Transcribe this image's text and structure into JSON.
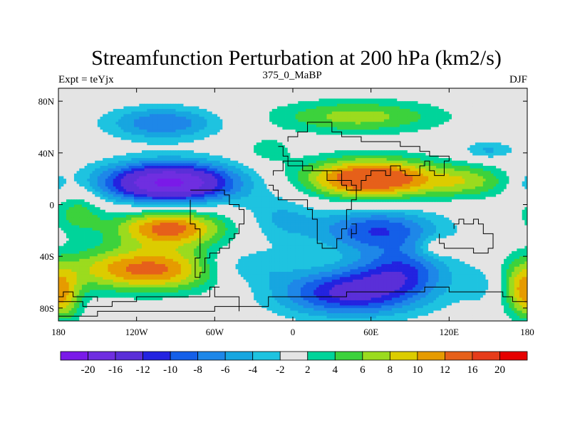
{
  "chart_data": {
    "type": "heatmap",
    "title": "Streamfunction Perturbation at 200 hPa (km2/s)",
    "subtitle_left": "Expt = teYjx",
    "subtitle_center": "375_0_MaBP",
    "subtitle_right": "DJF",
    "x_range": [
      -180,
      180
    ],
    "y_range": [
      -90,
      90
    ],
    "x_ticks": [
      {
        "value": -180,
        "label": "180"
      },
      {
        "value": -120,
        "label": "120W"
      },
      {
        "value": -60,
        "label": "60W"
      },
      {
        "value": 0,
        "label": "0"
      },
      {
        "value": 60,
        "label": "60E"
      },
      {
        "value": 120,
        "label": "120E"
      },
      {
        "value": 180,
        "label": "180"
      }
    ],
    "y_ticks": [
      {
        "value": 80,
        "label": "80N"
      },
      {
        "value": 40,
        "label": "40N"
      },
      {
        "value": 0,
        "label": "0"
      },
      {
        "value": -40,
        "label": "40S"
      },
      {
        "value": -80,
        "label": "80S"
      }
    ],
    "levels": [
      -20,
      -16,
      -12,
      -10,
      -8,
      -6,
      -4,
      -2,
      2,
      4,
      6,
      8,
      10,
      12,
      16,
      20
    ],
    "level_labels": [
      "-20",
      "-16",
      "-12",
      "-10",
      "-8",
      "-6",
      "-4",
      "-2",
      "2",
      "4",
      "6",
      "8",
      "10",
      "12",
      "16",
      "20"
    ],
    "colors": [
      "#7a1ae8",
      "#6f2ee0",
      "#5a2fd8",
      "#2323e0",
      "#145fe8",
      "#1e87e8",
      "#17a6e0",
      "#1ec3e0",
      "#e4e4e4",
      "#00d49a",
      "#3cd23c",
      "#9bdb1e",
      "#dccc00",
      "#e69b00",
      "#e6601a",
      "#e63c1a",
      "#e60000"
    ],
    "background_value_color": "#e4e4e4",
    "features": [
      {
        "lon": -100,
        "lat": 63,
        "amp": -8,
        "sx": 30,
        "sy": 9
      },
      {
        "lon": 50,
        "lat": 68,
        "amp": 7,
        "sx": 45,
        "sy": 9
      },
      {
        "lon": 150,
        "lat": 42,
        "amp": -4.5,
        "sx": 14,
        "sy": 5
      },
      {
        "lon": -95,
        "lat": 17,
        "amp": -21,
        "sx": 36,
        "sy": 11
      },
      {
        "lon": 60,
        "lat": 20,
        "amp": 16,
        "sx": 36,
        "sy": 11
      },
      {
        "lon": 135,
        "lat": 18,
        "amp": 6,
        "sx": 24,
        "sy": 9
      },
      {
        "lon": -20,
        "lat": 42,
        "amp": 3,
        "sx": 14,
        "sy": 8
      },
      {
        "lon": -95,
        "lat": -18,
        "amp": 13,
        "sx": 30,
        "sy": 10
      },
      {
        "lon": -110,
        "lat": -50,
        "amp": 13,
        "sx": 45,
        "sy": 12
      },
      {
        "lon": -165,
        "lat": -5,
        "amp": 5,
        "sx": 14,
        "sy": 12
      },
      {
        "lon": -10,
        "lat": -10,
        "amp": -4,
        "sx": 20,
        "sy": 14
      },
      {
        "lon": 65,
        "lat": -20,
        "amp": -10,
        "sx": 34,
        "sy": 12
      },
      {
        "lon": 45,
        "lat": -68,
        "amp": -13,
        "sx": 40,
        "sy": 13
      },
      {
        "lon": 85,
        "lat": -50,
        "amp": -8,
        "sx": 25,
        "sy": 12
      },
      {
        "lon": -40,
        "lat": -48,
        "amp": -6,
        "sx": 25,
        "sy": 10
      },
      {
        "lon": 110,
        "lat": -33,
        "amp": 3.8,
        "sx": 10,
        "sy": 6
      },
      {
        "lon": 150,
        "lat": -60,
        "amp": -3,
        "sx": 15,
        "sy": 13
      },
      {
        "lon": 175,
        "lat": -65,
        "amp": 8,
        "sx": 12,
        "sy": 14
      },
      {
        "lon": -175,
        "lat": -75,
        "amp": 5,
        "sx": 10,
        "sy": 12
      },
      {
        "lon": 178,
        "lat": 15,
        "amp": -3,
        "sx": 7,
        "sy": 8
      }
    ],
    "continents": [
      [
        [
          -10,
          45
        ],
        [
          -6,
          43
        ],
        [
          -6,
          38
        ],
        [
          -2,
          35
        ],
        [
          8,
          30
        ],
        [
          14,
          28
        ],
        [
          20,
          25
        ],
        [
          25,
          28
        ],
        [
          32,
          25
        ],
        [
          38,
          20
        ],
        [
          44,
          15
        ],
        [
          50,
          12
        ],
        [
          52,
          18
        ],
        [
          56,
          22
        ],
        [
          60,
          26
        ],
        [
          70,
          24
        ],
        [
          75,
          30
        ],
        [
          82,
          26
        ],
        [
          88,
          24
        ],
        [
          92,
          22
        ],
        [
          96,
          30
        ],
        [
          100,
          32
        ],
        [
          104,
          28
        ],
        [
          108,
          24
        ],
        [
          112,
          22
        ],
        [
          115,
          28
        ],
        [
          118,
          34
        ],
        [
          120,
          38
        ],
        [
          114,
          38
        ],
        [
          106,
          40
        ],
        [
          96,
          46
        ],
        [
          84,
          48
        ],
        [
          72,
          50
        ],
        [
          60,
          50
        ],
        [
          52,
          52
        ],
        [
          44,
          54
        ],
        [
          36,
          56
        ],
        [
          30,
          62
        ],
        [
          22,
          62
        ],
        [
          12,
          58
        ],
        [
          4,
          52
        ],
        [
          -2,
          48
        ]
      ],
      [
        [
          -18,
          16
        ],
        [
          -16,
          10
        ],
        [
          -10,
          5
        ],
        [
          0,
          5
        ],
        [
          10,
          4
        ],
        [
          12,
          -4
        ],
        [
          14,
          -12
        ],
        [
          18,
          -20
        ],
        [
          20,
          -30
        ],
        [
          22,
          -34
        ],
        [
          28,
          -34
        ],
        [
          32,
          -28
        ],
        [
          36,
          -20
        ],
        [
          40,
          -12
        ],
        [
          42,
          -4
        ],
        [
          46,
          4
        ],
        [
          50,
          10
        ],
        [
          44,
          12
        ],
        [
          40,
          16
        ],
        [
          36,
          20
        ],
        [
          28,
          26
        ],
        [
          18,
          28
        ],
        [
          8,
          30
        ],
        [
          -2,
          32
        ],
        [
          -8,
          28
        ],
        [
          -14,
          22
        ]
      ],
      [
        [
          44,
          -14
        ],
        [
          50,
          -14
        ],
        [
          50,
          -24
        ],
        [
          46,
          -26
        ],
        [
          44,
          -20
        ]
      ],
      [
        [
          -78,
          10
        ],
        [
          -70,
          12
        ],
        [
          -62,
          10
        ],
        [
          -52,
          6
        ],
        [
          -48,
          0
        ],
        [
          -40,
          -4
        ],
        [
          -36,
          -8
        ],
        [
          -38,
          -14
        ],
        [
          -40,
          -22
        ],
        [
          -46,
          -26
        ],
        [
          -50,
          -32
        ],
        [
          -56,
          -36
        ],
        [
          -62,
          -40
        ],
        [
          -66,
          -46
        ],
        [
          -68,
          -52
        ],
        [
          -72,
          -55
        ],
        [
          -74,
          -50
        ],
        [
          -74,
          -40
        ],
        [
          -72,
          -30
        ],
        [
          -70,
          -20
        ],
        [
          -76,
          -14
        ],
        [
          -80,
          -6
        ],
        [
          -80,
          2
        ]
      ],
      [
        [
          114,
          -22
        ],
        [
          114,
          -30
        ],
        [
          116,
          -34
        ],
        [
          124,
          -34
        ],
        [
          132,
          -32
        ],
        [
          138,
          -36
        ],
        [
          146,
          -38
        ],
        [
          150,
          -34
        ],
        [
          152,
          -28
        ],
        [
          152,
          -22
        ],
        [
          146,
          -16
        ],
        [
          142,
          -12
        ],
        [
          138,
          -16
        ],
        [
          132,
          -12
        ],
        [
          128,
          -15
        ],
        [
          122,
          -18
        ]
      ],
      [
        [
          -180,
          -74
        ],
        [
          -160,
          -78
        ],
        [
          -140,
          -75
        ],
        [
          -120,
          -73
        ],
        [
          -100,
          -72
        ],
        [
          -80,
          -70
        ],
        [
          -62,
          -65
        ],
        [
          -58,
          -64
        ],
        [
          -60,
          -70
        ],
        [
          -40,
          -78
        ],
        [
          -20,
          -72
        ],
        [
          0,
          -70
        ],
        [
          20,
          -70
        ],
        [
          40,
          -68
        ],
        [
          60,
          -67
        ],
        [
          80,
          -66
        ],
        [
          100,
          -65
        ],
        [
          120,
          -66
        ],
        [
          140,
          -66
        ],
        [
          160,
          -72
        ],
        [
          170,
          -75
        ],
        [
          180,
          -78
        ],
        [
          180,
          -90
        ],
        [
          -180,
          -90
        ]
      ],
      [
        [
          -180,
          -86
        ],
        [
          -150,
          -84
        ],
        [
          -120,
          -82
        ],
        [
          -90,
          -82
        ],
        [
          -60,
          -80
        ],
        [
          -40,
          -82
        ]
      ],
      [
        [
          -180,
          -70
        ],
        [
          -175,
          -68
        ],
        [
          -170,
          -72
        ],
        [
          -160,
          -70
        ],
        [
          -150,
          -74
        ]
      ]
    ]
  },
  "colorbar_labels": [
    "-20",
    "-16",
    "-12",
    "-10",
    "-8",
    "-6",
    "-4",
    "-2",
    "2",
    "4",
    "6",
    "8",
    "10",
    "12",
    "16",
    "20"
  ]
}
